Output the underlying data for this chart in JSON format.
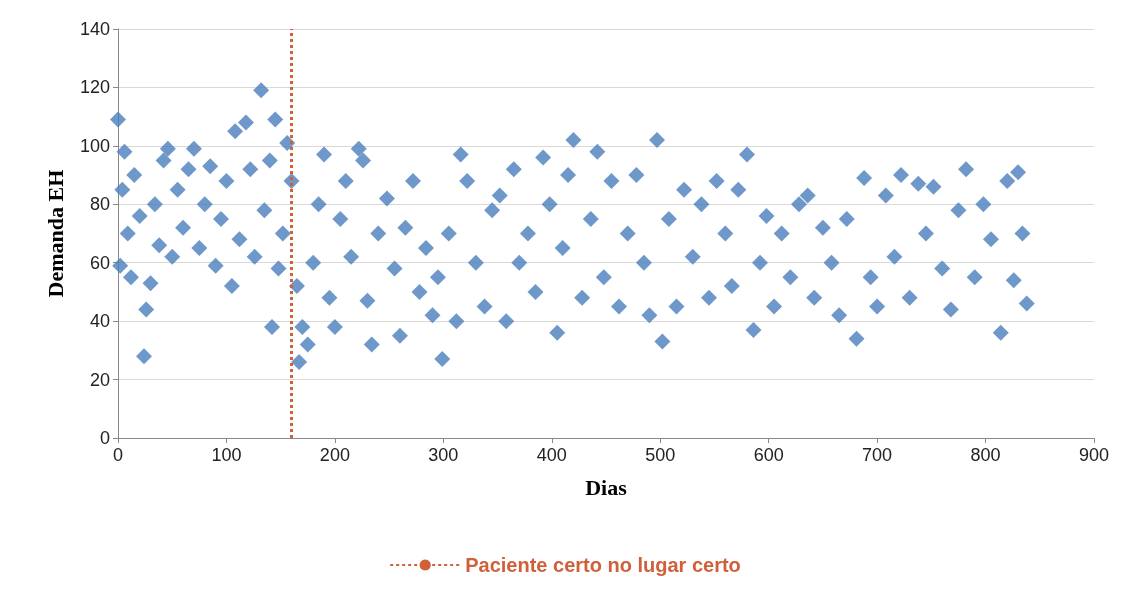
{
  "chart_data": {
    "type": "scatter",
    "xlabel": "Dias",
    "ylabel": "Demanda EH",
    "color": "#4a7ebb",
    "marker": "diamond",
    "grid": "y",
    "legend": "bottom",
    "xlim": [
      0,
      900
    ],
    "xticks": [
      0,
      100,
      200,
      300,
      400,
      500,
      600,
      700,
      800,
      900
    ],
    "ylim": [
      0,
      140
    ],
    "yticks": [
      0,
      20,
      40,
      60,
      80,
      100,
      120,
      140
    ],
    "ref_lines": [
      {
        "axis": "x",
        "value": 160,
        "label": "Paciente certo no lugar certo",
        "color": "#d0603a",
        "line_style": "dotted"
      }
    ],
    "x": [
      0,
      2,
      4,
      6,
      9,
      12,
      15,
      20,
      24,
      26,
      30,
      34,
      38,
      42,
      46,
      50,
      55,
      60,
      65,
      70,
      75,
      80,
      85,
      90,
      95,
      100,
      105,
      108,
      112,
      118,
      122,
      126,
      132,
      135,
      140,
      142,
      145,
      148,
      152,
      156,
      160,
      165,
      167,
      170,
      175,
      180,
      185,
      190,
      195,
      200,
      205,
      210,
      215,
      222,
      226,
      230,
      234,
      240,
      248,
      255,
      260,
      265,
      272,
      278,
      284,
      290,
      295,
      299,
      305,
      312,
      316,
      322,
      330,
      338,
      345,
      352,
      358,
      365,
      370,
      378,
      385,
      392,
      398,
      405,
      410,
      415,
      420,
      428,
      436,
      442,
      448,
      455,
      462,
      470,
      478,
      485,
      490,
      497,
      502,
      508,
      515,
      522,
      530,
      538,
      545,
      552,
      560,
      566,
      572,
      580,
      586,
      592,
      598,
      605,
      612,
      620,
      628,
      636,
      642,
      650,
      658,
      665,
      672,
      681,
      688,
      694,
      700,
      708,
      716,
      722,
      730,
      738,
      745,
      752,
      760,
      768,
      775,
      782,
      790,
      798,
      805,
      814,
      820,
      826,
      830,
      834,
      838
    ],
    "values": [
      109,
      59,
      85,
      98,
      70,
      55,
      90,
      76,
      28,
      44,
      53,
      80,
      66,
      95,
      99,
      62,
      85,
      72,
      92,
      99,
      65,
      80,
      93,
      59,
      75,
      88,
      52,
      105,
      68,
      108,
      92,
      62,
      119,
      78,
      95,
      38,
      109,
      58,
      70,
      101,
      88,
      52,
      26,
      38,
      32,
      60,
      80,
      97,
      48,
      38,
      75,
      88,
      62,
      99,
      95,
      47,
      32,
      70,
      82,
      58,
      35,
      72,
      88,
      50,
      65,
      42,
      55,
      27,
      70,
      40,
      97,
      88,
      60,
      45,
      78,
      83,
      40,
      92,
      60,
      70,
      50,
      96,
      80,
      36,
      65,
      90,
      102,
      48,
      75,
      98,
      55,
      88,
      45,
      70,
      90,
      60,
      42,
      102,
      33,
      75,
      45,
      85,
      62,
      80,
      48,
      88,
      70,
      52,
      85,
      97,
      37,
      60,
      76,
      45,
      70,
      55,
      80,
      83,
      48,
      72,
      60,
      42,
      75,
      34,
      89,
      55,
      45,
      83,
      62,
      90,
      48,
      87,
      70,
      86,
      58,
      44,
      78,
      92,
      55,
      80,
      68,
      36,
      88,
      54,
      91,
      70,
      46
    ]
  }
}
